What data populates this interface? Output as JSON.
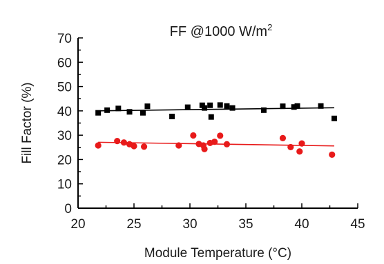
{
  "chart_data": {
    "type": "scatter",
    "title": "FF @1000 W/m",
    "title_superscript": "2",
    "xlabel": "Module Temperature (°C)",
    "ylabel": "Fill Factor (%)",
    "xlim": [
      20,
      45
    ],
    "ylim": [
      0,
      70
    ],
    "x_ticks": [
      20,
      25,
      30,
      35,
      40,
      45
    ],
    "y_ticks": [
      0,
      10,
      20,
      30,
      40,
      50,
      60,
      70
    ],
    "grid": false,
    "series": [
      {
        "marker": "square",
        "color": "#000000",
        "points": [
          [
            21.8,
            39.2
          ],
          [
            22.6,
            40.3
          ],
          [
            23.6,
            41.0
          ],
          [
            24.6,
            39.6
          ],
          [
            25.8,
            39.2
          ],
          [
            26.2,
            41.9
          ],
          [
            28.4,
            37.7
          ],
          [
            29.8,
            41.5
          ],
          [
            31.1,
            42.3
          ],
          [
            31.3,
            41.2
          ],
          [
            31.8,
            42.3
          ],
          [
            31.9,
            37.5
          ],
          [
            32.7,
            42.4
          ],
          [
            33.3,
            42.0
          ],
          [
            33.8,
            41.2
          ],
          [
            36.6,
            40.3
          ],
          [
            38.3,
            41.9
          ],
          [
            39.3,
            41.6
          ],
          [
            39.6,
            42.0
          ],
          [
            41.7,
            42.0
          ],
          [
            42.9,
            36.9
          ]
        ],
        "trend": [
          [
            21.8,
            40.0
          ],
          [
            42.9,
            41.3
          ]
        ],
        "trend_color": "#000000"
      },
      {
        "marker": "circle",
        "color": "#e81a1a",
        "points": [
          [
            21.8,
            25.8
          ],
          [
            23.5,
            27.6
          ],
          [
            24.1,
            27.0
          ],
          [
            24.6,
            26.3
          ],
          [
            25.0,
            25.5
          ],
          [
            25.9,
            25.3
          ],
          [
            29.0,
            25.8
          ],
          [
            30.3,
            29.9
          ],
          [
            30.8,
            26.4
          ],
          [
            31.2,
            25.8
          ],
          [
            31.3,
            24.3
          ],
          [
            31.8,
            26.8
          ],
          [
            32.2,
            27.3
          ],
          [
            32.7,
            29.8
          ],
          [
            33.3,
            26.3
          ],
          [
            38.3,
            28.8
          ],
          [
            39.0,
            25.1
          ],
          [
            39.8,
            23.3
          ],
          [
            40.0,
            26.6
          ],
          [
            42.7,
            22.0
          ]
        ],
        "trend": [
          [
            21.8,
            27.1
          ],
          [
            42.9,
            25.6
          ]
        ],
        "trend_color": "#e81a1a"
      }
    ]
  }
}
